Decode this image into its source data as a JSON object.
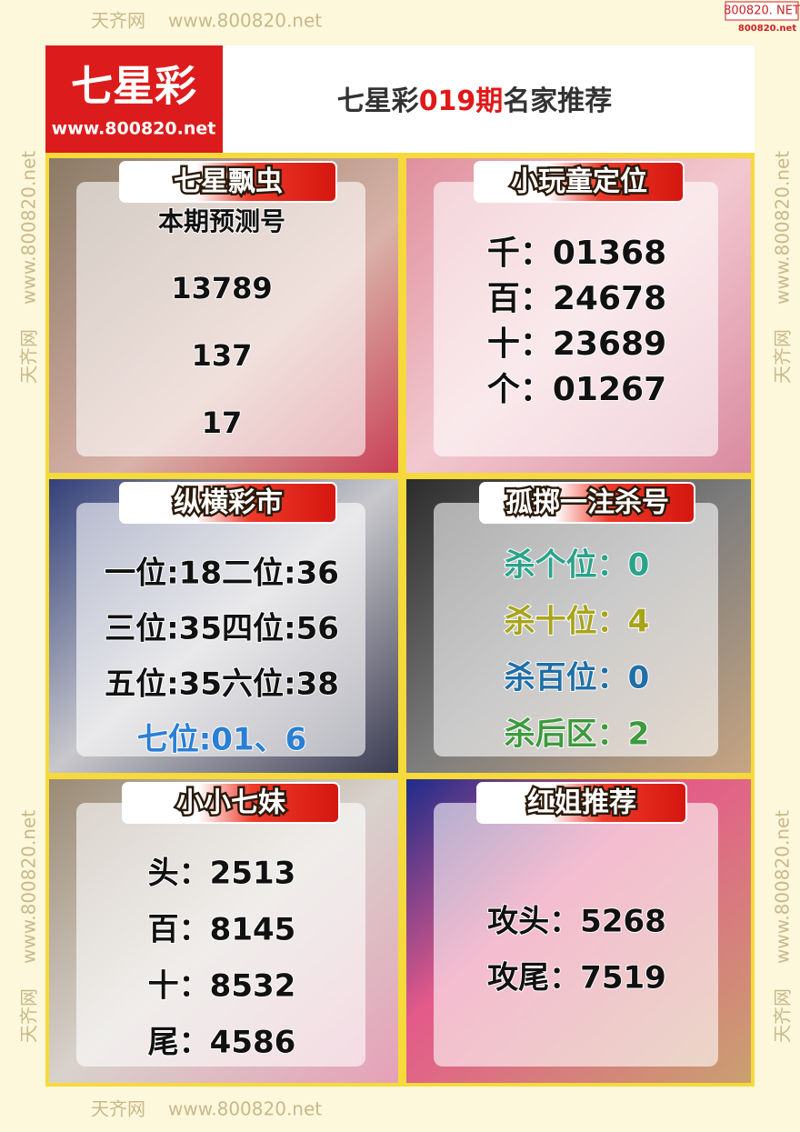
{
  "watermark": {
    "site": "天齐网",
    "url": "www.800820.net",
    "corner_top": "800820. NET",
    "corner_bottom": "800820.net"
  },
  "header": {
    "logo": "七星彩",
    "logo_url": "www.800820.net",
    "title_prefix": "七星彩",
    "title_issue": "019期",
    "title_suffix": "名家推荐"
  },
  "panels": [
    {
      "title": "七星飘虫",
      "lines": [
        {
          "text": "本期预测号",
          "color": "#111111"
        },
        {
          "text": "13789",
          "color": "#111111"
        },
        {
          "text": "137",
          "color": "#111111"
        },
        {
          "text": "17",
          "color": "#111111"
        }
      ]
    },
    {
      "title": "小玩童定位",
      "lines": [
        {
          "text": "千：01368",
          "color": "#111111"
        },
        {
          "text": "百：24678",
          "color": "#111111"
        },
        {
          "text": "十：23689",
          "color": "#111111"
        },
        {
          "text": "个：01267",
          "color": "#111111"
        }
      ]
    },
    {
      "title": "纵横彩市",
      "lines": [
        {
          "text": "一位:18二位:36",
          "color": "#111111"
        },
        {
          "text": "三位:35四位:56",
          "color": "#111111"
        },
        {
          "text": "五位:35六位:38",
          "color": "#111111"
        },
        {
          "text": "七位:01、6",
          "color": "#2a7fd4"
        }
      ]
    },
    {
      "title": "孤掷一注杀号",
      "lines": [
        {
          "text": "杀个位：0",
          "color": "#2aa38a"
        },
        {
          "text": "杀十位：4",
          "color": "#a8a41a"
        },
        {
          "text": "杀百位：0",
          "color": "#1f6fa8"
        },
        {
          "text": "杀后区：2",
          "color": "#3d9a3d"
        }
      ]
    },
    {
      "title": "小小七妹",
      "lines": [
        {
          "text": "头：2513",
          "color": "#111111"
        },
        {
          "text": "百：8145",
          "color": "#111111"
        },
        {
          "text": "十：8532",
          "color": "#111111"
        },
        {
          "text": "尾：4586",
          "color": "#111111"
        }
      ]
    },
    {
      "title": "红姐推荐",
      "lines": [
        {
          "text": "攻头：5268",
          "color": "#111111"
        },
        {
          "text": "攻尾：7519",
          "color": "#111111"
        }
      ]
    }
  ]
}
